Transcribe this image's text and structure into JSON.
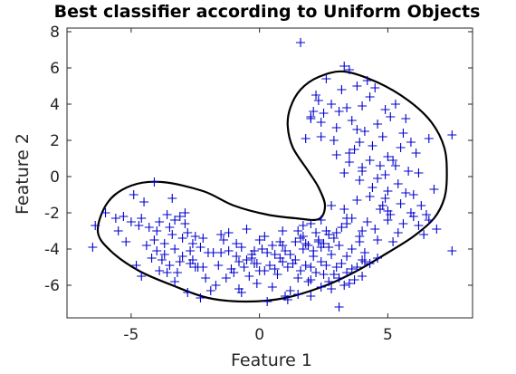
{
  "chart_data": {
    "type": "scatter",
    "title": "Best classifier according to Uniform Objects",
    "xlabel": "Feature 1",
    "ylabel": "Feature 2",
    "xlim": [
      -7.5,
      8.3
    ],
    "ylim": [
      -7.8,
      8.2
    ],
    "xticks": [
      -5,
      0,
      5
    ],
    "yticks": [
      -6,
      -4,
      -2,
      0,
      2,
      4,
      6,
      8
    ],
    "xtick_labels": [
      "-5",
      "0",
      "5"
    ],
    "ytick_labels": [
      "-6",
      "-4",
      "-2",
      "0",
      "2",
      "4",
      "6",
      "8"
    ],
    "grid": false,
    "legend": "none",
    "marker": "+",
    "colors": {
      "points": "#0000cc",
      "boundary": "#000000",
      "axes": "#262626"
    },
    "boundary": [
      [
        -3.8,
        -0.3
      ],
      [
        -2.2,
        -0.8
      ],
      [
        -1.0,
        -1.6
      ],
      [
        0.3,
        -2.1
      ],
      [
        1.4,
        -2.3
      ],
      [
        2.3,
        -2.35
      ],
      [
        2.55,
        -1.6
      ],
      [
        2.3,
        -0.6
      ],
      [
        1.9,
        0.3
      ],
      [
        1.3,
        1.6
      ],
      [
        1.1,
        2.8
      ],
      [
        1.2,
        3.8
      ],
      [
        1.6,
        4.8
      ],
      [
        2.3,
        5.5
      ],
      [
        3.3,
        5.8
      ],
      [
        4.6,
        5.2
      ],
      [
        5.8,
        4.2
      ],
      [
        6.7,
        3.0
      ],
      [
        7.2,
        1.6
      ],
      [
        7.3,
        0.1
      ],
      [
        7.2,
        -1.2
      ],
      [
        6.8,
        -2.3
      ],
      [
        6.0,
        -3.3
      ],
      [
        5.0,
        -4.2
      ],
      [
        3.8,
        -5.2
      ],
      [
        2.6,
        -6.0
      ],
      [
        1.0,
        -6.7
      ],
      [
        -0.5,
        -6.9
      ],
      [
        -2.0,
        -6.7
      ],
      [
        -3.4,
        -6.0
      ],
      [
        -4.7,
        -5.2
      ],
      [
        -5.8,
        -4.1
      ],
      [
        -6.3,
        -3.0
      ],
      [
        -5.9,
        -1.4
      ],
      [
        -5.0,
        -0.5
      ],
      [
        -3.8,
        -0.3
      ]
    ],
    "x": [
      1.6,
      2.6,
      3.3,
      3.5,
      2.2,
      2.8,
      3.1,
      4.0,
      4.3,
      2.0,
      2.5,
      3.0,
      3.4,
      2.4,
      2.9,
      3.8,
      3.6,
      2.1,
      2.3,
      3.2,
      4.2,
      1.8,
      2.0,
      3.8,
      4.5,
      4.9,
      5.3,
      5.7,
      5.1,
      4.6,
      4.1,
      3.9,
      4.8,
      5.5,
      4.4,
      5.0,
      5.6,
      4.3,
      3.7,
      5.9,
      4.7,
      5.2,
      6.1,
      4.0,
      4.9,
      3.5,
      6.6,
      7.5,
      2.4,
      3.0,
      3.5,
      4.0,
      5.3,
      4.6,
      5.8,
      6.2,
      5.4,
      3.3,
      3.9,
      4.4,
      5.0,
      5.7,
      6.8,
      6.0,
      4.3,
      3.8,
      4.9,
      5.5,
      6.3,
      2.8,
      3.3,
      4.7,
      5.9,
      6.5,
      5.1,
      3.6,
      2.4,
      3.4,
      4.2,
      5.0,
      5.6,
      6.2,
      6.6,
      4.5,
      3.2,
      4.0,
      5.4,
      6.9,
      3.9,
      4.6,
      5.2,
      2.9,
      1.8,
      2.3,
      2.7,
      3.1,
      3.6,
      4.1,
      4.6,
      7.5,
      4.3,
      6.4,
      6.0,
      5.0,
      4.8,
      2.0,
      1.5,
      2.7,
      3.4,
      4.0,
      -6.5,
      -6.0,
      -5.6,
      -5.3,
      -5.0,
      -4.7,
      -4.6,
      -4.3,
      -4.0,
      -3.9,
      -3.6,
      -3.5,
      -3.3,
      -3.1,
      -2.9,
      -2.8,
      -2.5,
      -2.2,
      -4.5,
      -4.9,
      -5.2,
      -4.1,
      -3.7,
      -3.4,
      -3.0,
      -2.6,
      -2.3,
      -2.0,
      -1.8,
      -4.4,
      -4.0,
      -3.7,
      -3.3,
      -3.0,
      -2.7,
      -3.8,
      -4.2,
      -4.8,
      -3.5,
      -3.1,
      -2.6,
      -2.4,
      -2.2,
      -3.9,
      -3.6,
      -3.2,
      -5.5,
      -6.4,
      -4.6,
      -4.1,
      -3.4,
      -2.9,
      -2.7,
      -2.5,
      -3.3,
      -2.8,
      -2.1,
      -1.5,
      -1.4,
      -1.2,
      -0.9,
      -0.7,
      -0.5,
      -0.3,
      -0.1,
      0.1,
      0.3,
      0.5,
      0.8,
      1.0,
      1.2,
      1.4,
      1.7,
      1.9,
      2.1,
      2.3,
      2.5,
      -1.6,
      -1.1,
      -0.8,
      -0.6,
      -0.2,
      0.2,
      0.4,
      0.6,
      0.9,
      1.1,
      1.3,
      1.6,
      1.8,
      2.0,
      2.2,
      2.4,
      2.6,
      -1.3,
      -1.0,
      -0.4,
      0.0,
      0.7,
      1.5,
      2.0,
      2.5,
      -1.7,
      -0.8,
      -0.1,
      0.5,
      1.2,
      1.9,
      2.4,
      -1.2,
      -0.5,
      0.2,
      0.9,
      1.6,
      2.2,
      -0.9,
      0.0,
      0.8,
      1.7,
      2.6,
      -1.5,
      -0.3,
      0.6,
      1.4,
      2.1,
      2.8,
      3.0,
      3.2,
      3.6,
      2.9,
      3.4,
      3.8,
      4.1,
      2.7,
      3.1,
      3.5,
      2.8,
      3.3,
      3.7,
      4.0,
      1.0,
      1.5,
      -1.9,
      -2.3,
      -0.7,
      0.3,
      1.1,
      2.0,
      3.1,
      2.4,
      1.7,
      0.9,
      -0.2,
      3.9,
      3.4,
      3.0
    ],
    "y": [
      7.4,
      5.4,
      6.1,
      5.9,
      4.5,
      4.0,
      3.6,
      3.9,
      4.4,
      3.2,
      3.5,
      2.7,
      3.8,
      2.2,
      2.0,
      2.6,
      3.1,
      3.6,
      4.2,
      4.8,
      5.3,
      2.1,
      3.3,
      5.0,
      4.9,
      3.7,
      4.0,
      3.2,
      3.3,
      2.9,
      2.5,
      1.9,
      2.2,
      1.6,
      1.7,
      1.1,
      2.4,
      0.9,
      1.5,
      1.9,
      0.6,
      0.9,
      1.3,
      0.3,
      0.1,
      1.3,
      2.1,
      2.3,
      3.0,
      1.2,
      0.8,
      0.5,
      0.6,
      -0.1,
      0.3,
      0.2,
      -0.4,
      0.2,
      -0.2,
      -0.6,
      -0.8,
      -0.9,
      -0.7,
      -1.0,
      -1.1,
      -1.3,
      -1.2,
      -1.5,
      -1.6,
      -1.6,
      -1.8,
      -1.8,
      -2.0,
      -2.1,
      -2.1,
      -2.3,
      -2.4,
      -2.3,
      -2.5,
      -2.4,
      -2.6,
      -2.7,
      -2.4,
      -2.9,
      -2.8,
      -3.0,
      -3.1,
      -2.9,
      -3.3,
      -3.5,
      -3.6,
      -3.4,
      -3.7,
      -3.6,
      -3.9,
      -3.8,
      -4.0,
      -4.2,
      -4.5,
      -4.1,
      -4.8,
      -3.2,
      -2.2,
      -1.9,
      -1.6,
      -2.6,
      -3.0,
      -3.2,
      -4.4,
      -4.6,
      -3.9,
      -2.0,
      -2.3,
      -2.2,
      -2.5,
      -2.7,
      -2.3,
      -2.8,
      -3.0,
      -2.5,
      -2.1,
      -2.8,
      -2.4,
      -2.2,
      -2.6,
      -3.1,
      -3.3,
      -3.4,
      -1.4,
      -1.0,
      -3.6,
      -3.5,
      -3.7,
      -3.2,
      -3.4,
      -3.7,
      -3.9,
      -4.2,
      -4.2,
      -3.8,
      -4.1,
      -4.3,
      -4.0,
      -4.4,
      -4.1,
      -4.6,
      -4.5,
      -4.9,
      -4.9,
      -4.7,
      -4.6,
      -5.0,
      -5.0,
      -5.2,
      -5.3,
      -5.3,
      -3.0,
      -2.7,
      -5.5,
      -0.3,
      -1.2,
      -2.0,
      -4.8,
      -5.0,
      -5.8,
      -6.4,
      -5.6,
      -3.2,
      -3.5,
      -4.1,
      -4.4,
      -3.9,
      -4.6,
      -4.3,
      -4.8,
      -4.0,
      -4.2,
      -3.8,
      -4.5,
      -4.1,
      -4.3,
      -3.6,
      -4.0,
      -3.8,
      -4.1,
      -3.5,
      -3.7,
      -4.9,
      -5.1,
      -4.7,
      -5.0,
      -4.8,
      -5.2,
      -4.9,
      -5.1,
      -4.7,
      -5.0,
      -4.8,
      -5.2,
      -4.9,
      -5.0,
      -5.3,
      -4.7,
      -4.9,
      -5.6,
      -5.3,
      -5.5,
      -5.2,
      -5.4,
      -5.6,
      -5.7,
      -5.4,
      -6.0,
      -6.2,
      -5.9,
      -6.1,
      -6.3,
      -5.8,
      -6.1,
      -3.1,
      -2.9,
      -3.3,
      -3.0,
      -3.4,
      -3.1,
      -3.7,
      -3.5,
      -3.6,
      -3.3,
      -3.0,
      -4.2,
      -4.5,
      -4.3,
      -4.6,
      -4.4,
      -4.3,
      -5.0,
      -4.8,
      -5.1,
      -5.4,
      -5.3,
      -5.0,
      -4.7,
      -5.8,
      -5.6,
      -5.9,
      -6.2,
      -6.0,
      -5.7,
      -5.5,
      -6.6,
      -6.5,
      -6.3,
      -6.7,
      -6.4,
      -6.9,
      -6.8,
      -6.6,
      -7.2,
      -3.9,
      -2.7,
      -3.8,
      -4.1,
      -3.6,
      -2.6,
      -3.1
    ]
  }
}
